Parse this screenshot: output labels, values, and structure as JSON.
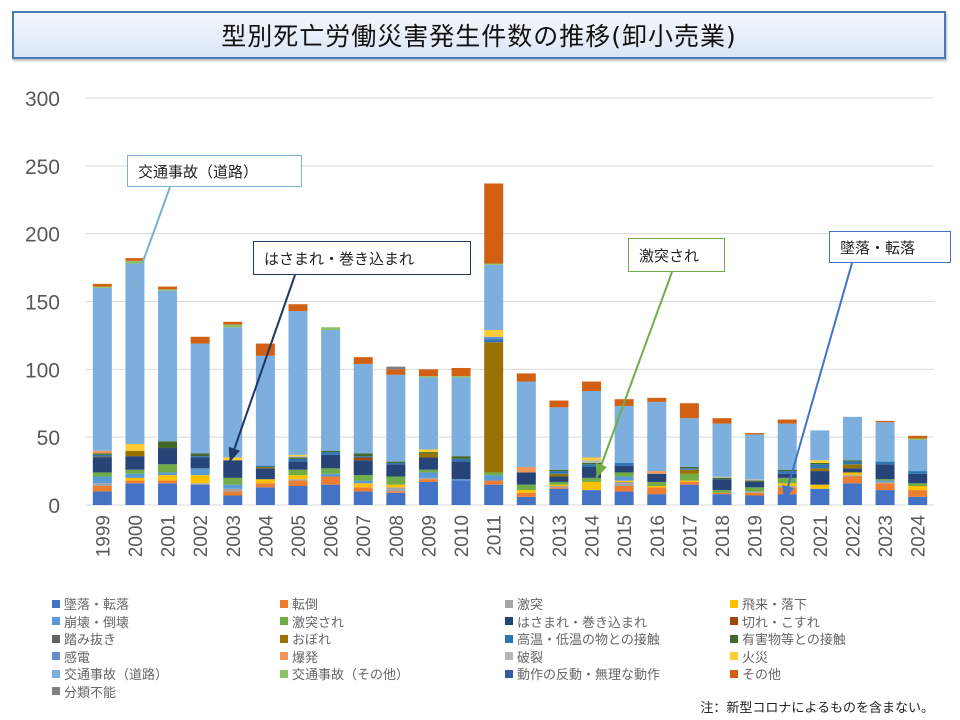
{
  "title": "型別死亡労働災害発生件数の推移(卸小売業)",
  "note": "注：新型コロナによるものを含まない。",
  "callouts": [
    {
      "label": "交通事故（道路）",
      "color": "#7bafd4",
      "target_year": "2000"
    },
    {
      "label": "はさまれ・巻き込まれ",
      "color": "#1f3864",
      "target_year": "2003"
    },
    {
      "label": "激突され",
      "color": "#70ad47",
      "target_year": "2014"
    },
    {
      "label": "墜落・転落",
      "color": "#4472c4",
      "target_year": "2020"
    }
  ],
  "chart_data": {
    "type": "bar",
    "stacked": true,
    "title": "型別死亡労働災害発生件数の推移(卸小売業)",
    "xlabel": "",
    "ylabel": "",
    "ylim": [
      0,
      300
    ],
    "yticks": [
      "0",
      "50",
      "100",
      "150",
      "200",
      "250",
      "300"
    ],
    "grid": true,
    "legend_position": "bottom",
    "categories": [
      "1999",
      "2000",
      "2001",
      "2002",
      "2003",
      "2004",
      "2005",
      "2006",
      "2007",
      "2008",
      "2009",
      "2010",
      "2011",
      "2012",
      "2013",
      "2014",
      "2015",
      "2016",
      "2017",
      "2018",
      "2019",
      "2020",
      "2021",
      "2022",
      "2023",
      "2024"
    ],
    "series": [
      {
        "name": "墜落・転落",
        "color": "#4472c4",
        "values": [
          10,
          16,
          16,
          15,
          7,
          13,
          14,
          15,
          10,
          9,
          17,
          18,
          15,
          6,
          12,
          11,
          10,
          8,
          15,
          8,
          7,
          8,
          12,
          16,
          11,
          6
        ]
      },
      {
        "name": "転倒",
        "color": "#ed7d31",
        "values": [
          4,
          2,
          2,
          0,
          3,
          3,
          4,
          6,
          3,
          1,
          2,
          0,
          3,
          3,
          1,
          0,
          4,
          5,
          2,
          1,
          2,
          5,
          0,
          5,
          5,
          5
        ]
      },
      {
        "name": "激突",
        "color": "#a5a5a5",
        "values": [
          2,
          0,
          0,
          1,
          2,
          0,
          1,
          0,
          0,
          3,
          1,
          0,
          0,
          0,
          1,
          0,
          3,
          0,
          0,
          0,
          1,
          1,
          0,
          1,
          1,
          0
        ]
      },
      {
        "name": "飛来・落下",
        "color": "#ffc000",
        "values": [
          0,
          2,
          4,
          6,
          0,
          3,
          3,
          0,
          3,
          2,
          0,
          0,
          0,
          2,
          1,
          6,
          1,
          1,
          1,
          0,
          0,
          2,
          3,
          2,
          0,
          3
        ]
      },
      {
        "name": "崩壊・倒壊",
        "color": "#5b9bd5",
        "values": [
          5,
          3,
          2,
          5,
          3,
          0,
          0,
          2,
          2,
          0,
          4,
          1,
          4,
          0,
          0,
          0,
          3,
          0,
          0,
          0,
          0,
          0,
          0,
          0,
          1,
          0
        ]
      },
      {
        "name": "激突され",
        "color": "#70ad47",
        "values": [
          3,
          3,
          6,
          0,
          5,
          0,
          4,
          4,
          4,
          6,
          2,
          0,
          2,
          4,
          2,
          3,
          3,
          3,
          5,
          2,
          3,
          4,
          0,
          0,
          1,
          2
        ]
      },
      {
        "name": "はさまれ・巻き込まれ",
        "color": "#264478",
        "values": [
          11,
          10,
          12,
          8,
          13,
          8,
          6,
          10,
          11,
          9,
          9,
          13,
          0,
          9,
          4,
          8,
          5,
          6,
          0,
          8,
          4,
          3,
          10,
          3,
          11,
          7
        ]
      },
      {
        "name": "切れ・こすれ",
        "color": "#9e480e",
        "values": [
          0,
          0,
          0,
          0,
          0,
          0,
          0,
          0,
          2,
          0,
          0,
          0,
          0,
          0,
          0,
          0,
          0,
          0,
          0,
          0,
          0,
          0,
          0,
          0,
          0,
          0
        ]
      },
      {
        "name": "踏み抜き",
        "color": "#636363",
        "values": [
          1,
          0,
          0,
          0,
          0,
          0,
          0,
          0,
          0,
          0,
          0,
          0,
          0,
          0,
          0,
          0,
          0,
          0,
          0,
          0,
          0,
          0,
          0,
          0,
          0,
          0
        ]
      },
      {
        "name": "おぼれ",
        "color": "#997300",
        "values": [
          0,
          4,
          0,
          0,
          0,
          1,
          0,
          0,
          0,
          0,
          3,
          0,
          96,
          0,
          2,
          0,
          0,
          0,
          3,
          0,
          0,
          0,
          2,
          3,
          0,
          0
        ]
      },
      {
        "name": "高温・低温の物との接触",
        "color": "#2e75b6",
        "values": [
          1,
          0,
          0,
          1,
          0,
          1,
          2,
          2,
          1,
          1,
          0,
          2,
          2,
          0,
          2,
          2,
          2,
          0,
          1,
          0,
          0,
          2,
          3,
          2,
          2,
          2
        ]
      },
      {
        "name": "有害物等との接触",
        "color": "#43682b",
        "values": [
          1,
          0,
          5,
          2,
          0,
          0,
          1,
          1,
          2,
          1,
          1,
          2,
          0,
          0,
          1,
          1,
          0,
          0,
          1,
          1,
          1,
          1,
          1,
          1,
          0,
          0
        ]
      },
      {
        "name": "感電",
        "color": "#698ed0",
        "values": [
          0,
          0,
          0,
          0,
          0,
          0,
          0,
          0,
          0,
          0,
          0,
          0,
          2,
          0,
          0,
          0,
          0,
          0,
          0,
          0,
          0,
          0,
          0,
          0,
          0,
          0
        ]
      },
      {
        "name": "爆発",
        "color": "#f1975a",
        "values": [
          2,
          0,
          0,
          0,
          0,
          0,
          0,
          0,
          0,
          0,
          0,
          0,
          0,
          4,
          0,
          0,
          0,
          2,
          0,
          0,
          0,
          0,
          0,
          0,
          0,
          0
        ]
      },
      {
        "name": "破裂",
        "color": "#b7b7b7",
        "values": [
          0,
          0,
          0,
          0,
          0,
          0,
          1,
          0,
          0,
          0,
          0,
          0,
          0,
          0,
          0,
          2,
          0,
          0,
          0,
          1,
          1,
          0,
          0,
          0,
          0,
          0
        ]
      },
      {
        "name": "火災",
        "color": "#ffcd33",
        "values": [
          0,
          5,
          0,
          0,
          2,
          0,
          1,
          0,
          0,
          0,
          2,
          0,
          5,
          0,
          0,
          2,
          0,
          0,
          0,
          0,
          0,
          0,
          2,
          0,
          0,
          0
        ]
      },
      {
        "name": "交通事故（道路）",
        "color": "#7cafdd",
        "values": [
          120,
          133,
          111,
          81,
          96,
          81,
          106,
          89,
          66,
          64,
          53,
          58,
          48,
          63,
          46,
          49,
          42,
          51,
          36,
          39,
          33,
          34,
          22,
          32,
          29,
          23
        ]
      },
      {
        "name": "交通事故（その他）",
        "color": "#8cc168",
        "values": [
          1,
          2,
          1,
          0,
          2,
          0,
          0,
          2,
          0,
          0,
          1,
          1,
          1,
          0,
          0,
          0,
          0,
          0,
          0,
          0,
          0,
          0,
          0,
          0,
          0,
          1
        ]
      },
      {
        "name": "動作の反動・無理な動作",
        "color": "#335aa1",
        "values": [
          0,
          0,
          0,
          0,
          0,
          0,
          0,
          0,
          0,
          0,
          0,
          0,
          0,
          0,
          0,
          0,
          0,
          0,
          0,
          0,
          0,
          0,
          0,
          0,
          0,
          0
        ]
      },
      {
        "name": "その他",
        "color": "#d26012",
        "values": [
          2,
          2,
          2,
          5,
          2,
          9,
          5,
          0,
          5,
          4,
          5,
          6,
          59,
          6,
          5,
          7,
          5,
          3,
          11,
          4,
          1,
          3,
          0,
          0,
          1,
          2
        ]
      },
      {
        "name": "分類不能",
        "color": "#7f7f7f",
        "values": [
          0,
          0,
          0,
          0,
          0,
          0,
          0,
          0,
          0,
          2,
          0,
          0,
          0,
          0,
          0,
          0,
          0,
          0,
          0,
          0,
          0,
          0,
          0,
          0,
          0,
          0
        ]
      }
    ]
  }
}
